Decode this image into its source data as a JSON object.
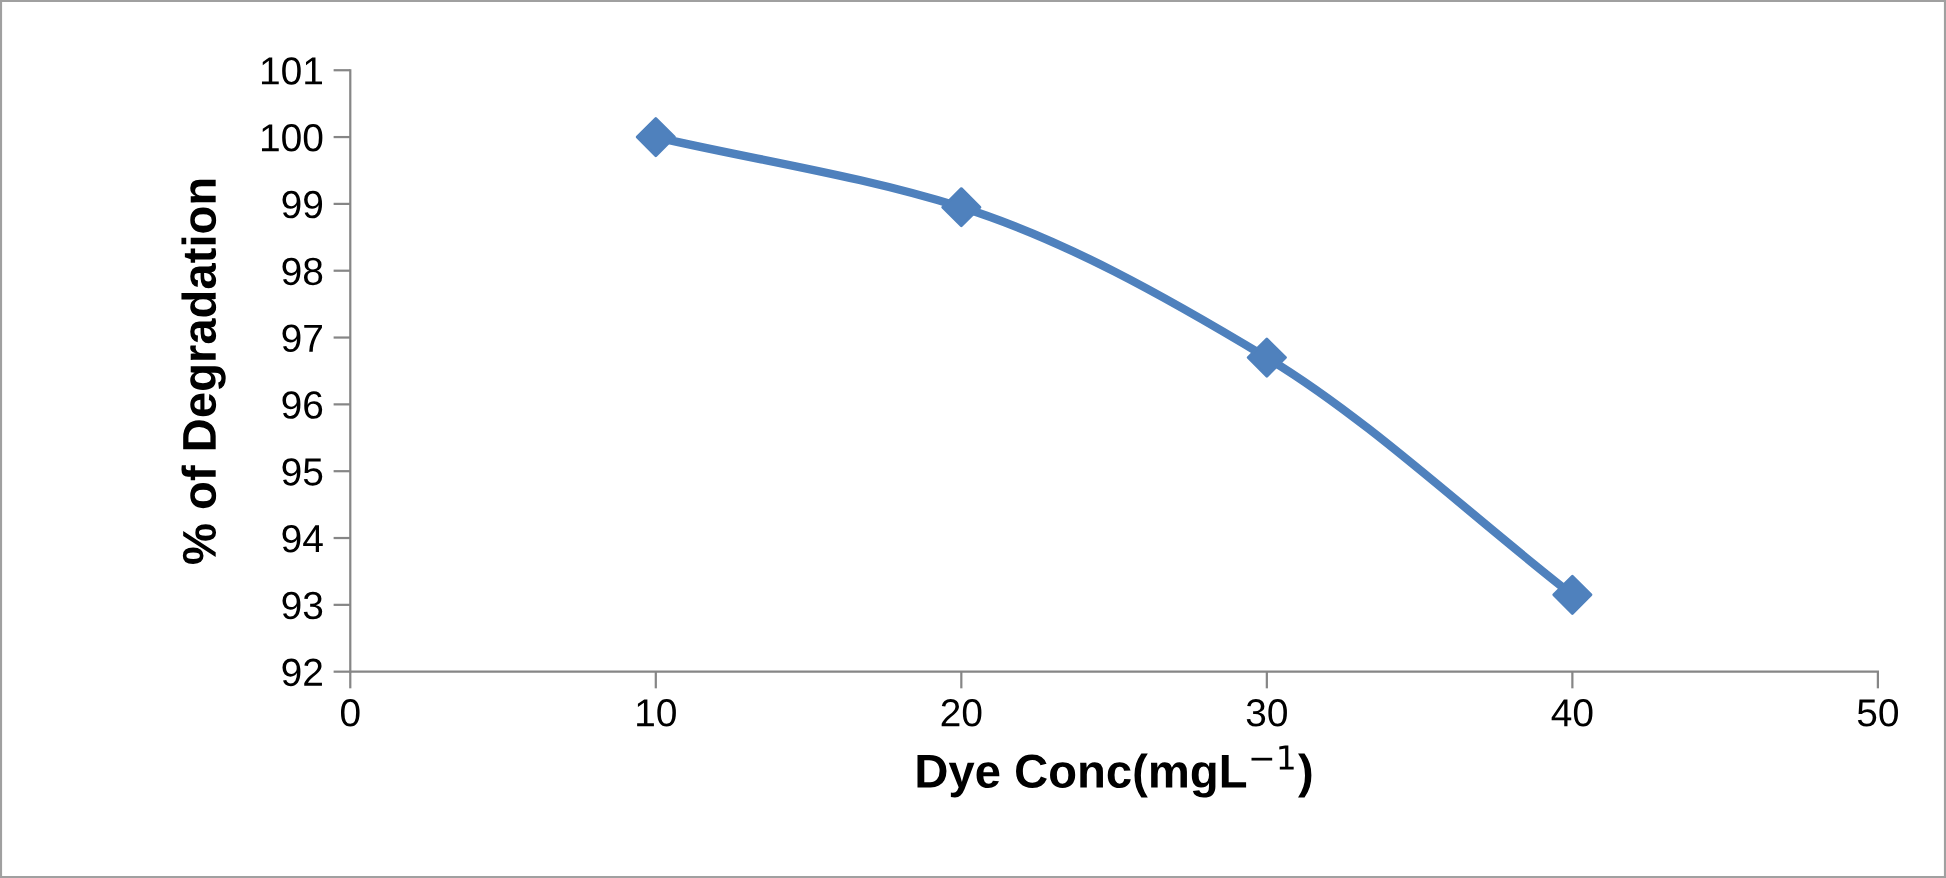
{
  "chart_data": {
    "type": "line",
    "xlabel": "Dye Conc(mgL$^{−1}$)",
    "ylabel": "% of Degradation",
    "x": [
      10,
      20,
      30,
      40
    ],
    "series": [
      {
        "color": "#4f81bd",
        "values": [
          100,
          98.95,
          96.7,
          93.15
        ]
      }
    ],
    "xlim": [
      0,
      50
    ],
    "xticks": [
      0,
      10,
      20,
      30,
      40,
      50
    ],
    "ylim": [
      92,
      101
    ],
    "yticks": [
      92,
      93,
      94,
      95,
      96,
      97,
      98,
      99,
      100,
      101
    ],
    "grid": false,
    "legend": false,
    "marker": "diamond",
    "line_style": "solid"
  }
}
